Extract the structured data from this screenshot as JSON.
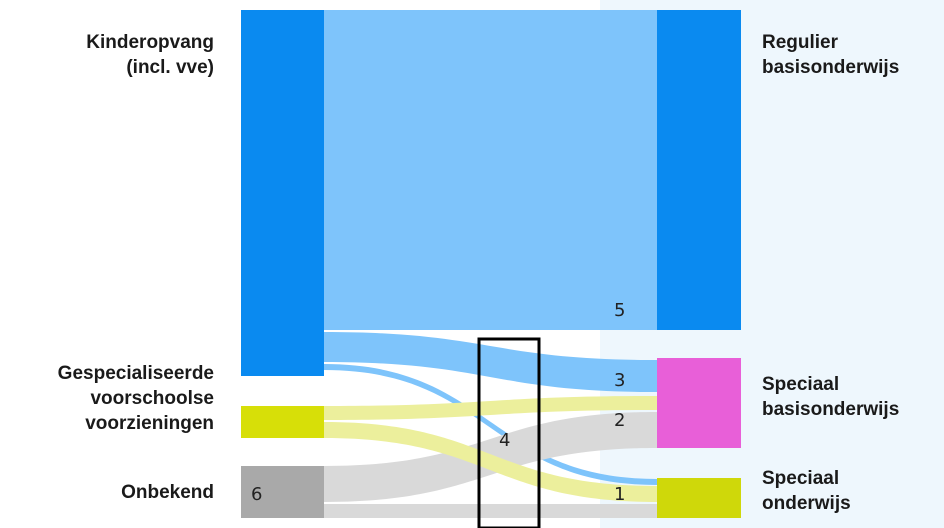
{
  "left_nodes": {
    "kinderopvang": {
      "label_line1": "Kinderopvang",
      "label_line2": "(incl. vve)",
      "color": "#0a8af0"
    },
    "gespecialiseerd": {
      "label_line1": "Gespecialiseerde",
      "label_line2": "voorschoolse",
      "label_line3": "voorzieningen",
      "color": "#d7df08"
    },
    "onbekend": {
      "label": "Onbekend",
      "color": "#a9a9a9",
      "number": "6"
    }
  },
  "right_nodes": {
    "regulier": {
      "label_line1": "Regulier",
      "label_line2": "basisonderwijs",
      "color": "#0a8af0"
    },
    "speciaal_basis": {
      "label_line1": "Speciaal",
      "label_line2": "basisonderwijs",
      "color": "#e85fd8"
    },
    "speciaal_onderwijs": {
      "label_line1": "Speciaal",
      "label_line2": "onderwijs",
      "color": "#cfd80a"
    }
  },
  "flow_numbers": {
    "n1": "1",
    "n2": "2",
    "n3": "3",
    "n4": "4",
    "n5": "5"
  },
  "colors": {
    "blue_link": "#7ec4fb",
    "yellow_link": "#ecef9c",
    "gray_link": "#d9d9d9",
    "highlight_box": "#000000"
  }
}
